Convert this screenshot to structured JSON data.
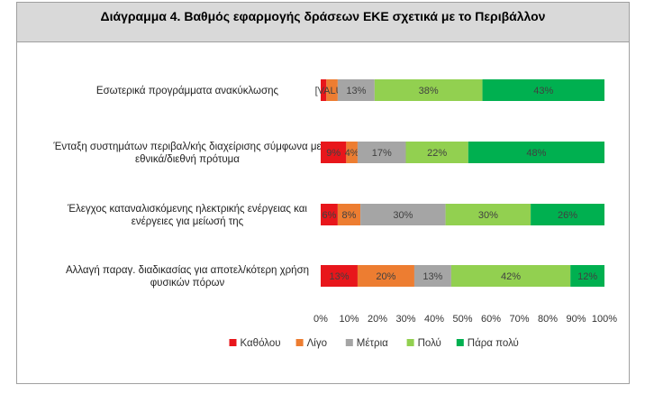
{
  "chart_data": {
    "type": "bar",
    "orientation": "horizontal",
    "stacked": "percent",
    "title": "Διάγραμμα 4. Βαθμός εφαρμογής δράσεων ΕΚΕ σχετικά με το Περιβάλλον",
    "categories": [
      [
        "Εσωτερικά προγράμματα ανακύκλωσης"
      ],
      [
        "Ένταξη συστημάτων περιβαλ/κής διαχείρισης σύμφωνα με",
        "εθνικά/διεθνή πρότυμα"
      ],
      [
        "Έλεγχος καταναλισκόμενης ηλεκτρικής ενέργειας και",
        "ενέργειες για μείωσή της"
      ],
      [
        "Αλλαγή παραγ. διαδικασίας για αποτελ/κότερη χρήση",
        "φυσικών πόρων"
      ]
    ],
    "series": [
      {
        "name": "Καθόλου",
        "color": "#e8161b",
        "values": [
          2,
          9,
          6,
          13
        ],
        "labels": [
          "",
          "9%",
          "6%",
          "13%"
        ]
      },
      {
        "name": "Λίγο",
        "color": "#ed7d31",
        "values": [
          4,
          4,
          8,
          20
        ],
        "labels": [
          "[VALUE]",
          "4%",
          "8%",
          "20%"
        ]
      },
      {
        "name": "Μέτρια",
        "color": "#a5a5a5",
        "values": [
          13,
          17,
          30,
          13
        ],
        "labels": [
          "13%",
          "17%",
          "30%",
          "13%"
        ]
      },
      {
        "name": "Πολύ",
        "color": "#92d050",
        "values": [
          38,
          22,
          30,
          42
        ],
        "labels": [
          "38%",
          "22%",
          "30%",
          "42%"
        ]
      },
      {
        "name": "Πάρα πολύ",
        "color": "#00b050",
        "values": [
          43,
          48,
          26,
          12
        ],
        "labels": [
          "43%",
          "48%",
          "26%",
          "12%"
        ]
      }
    ],
    "xlim": [
      0,
      100
    ],
    "x_ticks": [
      "0%",
      "10%",
      "20%",
      "30%",
      "40%",
      "50%",
      "60%",
      "70%",
      "80%",
      "90%",
      "100%"
    ],
    "grid": false,
    "legend_position": "bottom"
  }
}
